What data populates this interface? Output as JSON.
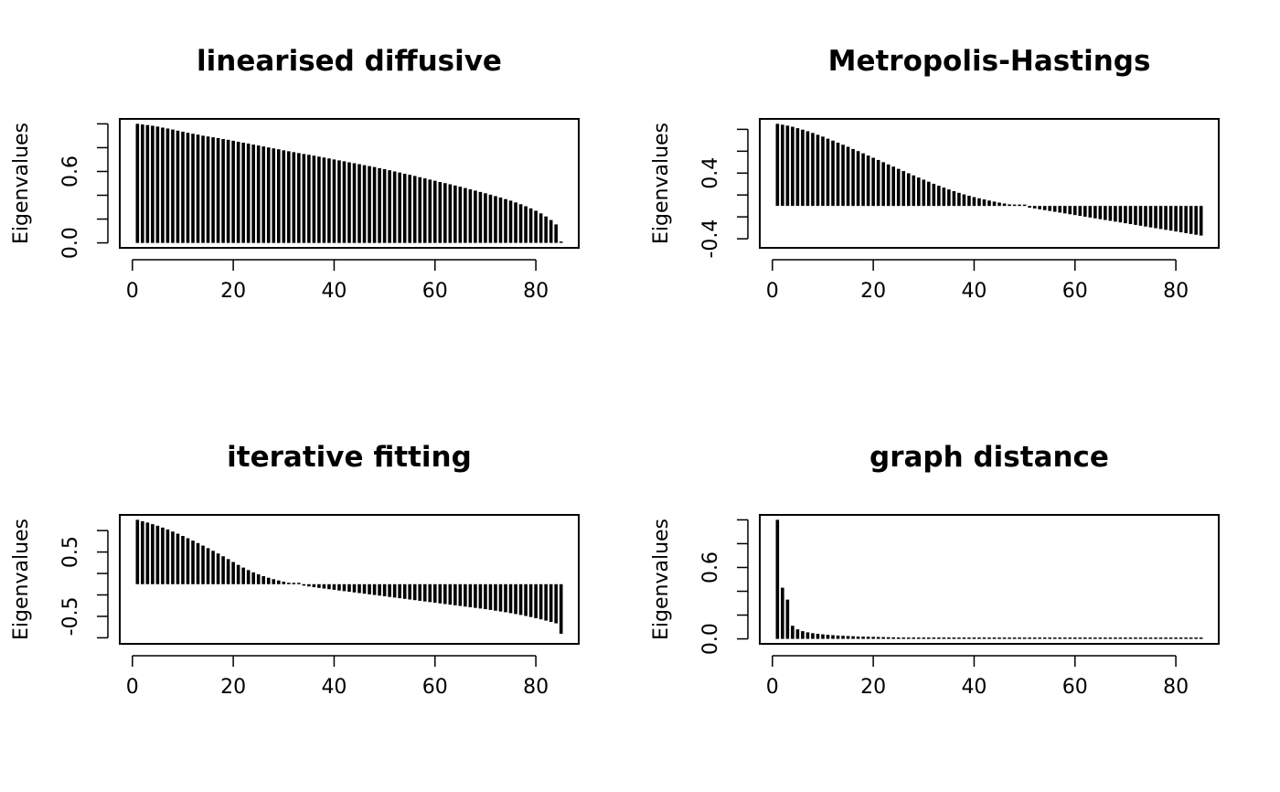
{
  "chart_data": [
    {
      "type": "bar",
      "title": "linearised diffusive",
      "ylabel": "Eigenvalues",
      "x": {
        "from": 1,
        "to": 85
      },
      "xlim": [
        1,
        85
      ],
      "xticks": [
        "0",
        "20",
        "40",
        "60",
        "80"
      ],
      "ylim": [
        0,
        1
      ],
      "yticks": [
        "0.0",
        "0.6"
      ],
      "grid": false,
      "values": [
        1.0,
        0.995,
        0.99,
        0.984,
        0.977,
        0.969,
        0.961,
        0.952,
        0.943,
        0.934,
        0.925,
        0.917,
        0.909,
        0.901,
        0.894,
        0.887,
        0.88,
        0.873,
        0.866,
        0.858,
        0.85,
        0.842,
        0.834,
        0.826,
        0.818,
        0.81,
        0.802,
        0.794,
        0.786,
        0.778,
        0.77,
        0.762,
        0.755,
        0.747,
        0.74,
        0.732,
        0.725,
        0.717,
        0.709,
        0.701,
        0.693,
        0.685,
        0.677,
        0.669,
        0.661,
        0.653,
        0.645,
        0.637,
        0.628,
        0.619,
        0.61,
        0.6,
        0.591,
        0.581,
        0.572,
        0.562,
        0.552,
        0.542,
        0.532,
        0.522,
        0.512,
        0.502,
        0.492,
        0.482,
        0.472,
        0.461,
        0.45,
        0.439,
        0.428,
        0.417,
        0.405,
        0.393,
        0.381,
        0.368,
        0.355,
        0.34,
        0.325,
        0.308,
        0.29,
        0.27,
        0.248,
        0.222,
        0.192,
        0.155,
        0.0
      ]
    },
    {
      "type": "bar",
      "title": "Metropolis-Hastings",
      "ylabel": "Eigenvalues",
      "x": {
        "from": 1,
        "to": 85
      },
      "xlim": [
        1,
        85
      ],
      "xticks": [
        "0",
        "20",
        "40",
        "60",
        "80"
      ],
      "ylim": [
        -0.45,
        1
      ],
      "yticks": [
        "-0.4",
        "0.4"
      ],
      "grid": false,
      "values": [
        1.0,
        0.99,
        0.978,
        0.964,
        0.948,
        0.93,
        0.91,
        0.889,
        0.867,
        0.844,
        0.82,
        0.796,
        0.771,
        0.746,
        0.72,
        0.694,
        0.668,
        0.641,
        0.614,
        0.587,
        0.56,
        0.533,
        0.506,
        0.479,
        0.452,
        0.425,
        0.398,
        0.372,
        0.346,
        0.32,
        0.295,
        0.27,
        0.246,
        0.223,
        0.201,
        0.18,
        0.16,
        0.141,
        0.124,
        0.108,
        0.093,
        0.079,
        0.066,
        0.053,
        0.041,
        0.03,
        0.019,
        0.009,
        -0.001,
        -0.011,
        -0.021,
        -0.031,
        -0.041,
        -0.051,
        -0.061,
        -0.071,
        -0.081,
        -0.091,
        -0.101,
        -0.111,
        -0.121,
        -0.131,
        -0.141,
        -0.151,
        -0.161,
        -0.171,
        -0.181,
        -0.191,
        -0.201,
        -0.211,
        -0.221,
        -0.231,
        -0.241,
        -0.251,
        -0.261,
        -0.271,
        -0.281,
        -0.291,
        -0.301,
        -0.311,
        -0.321,
        -0.331,
        -0.341,
        -0.351,
        -0.361
      ]
    },
    {
      "type": "bar",
      "title": "iterative fitting",
      "ylabel": "Eigenvalues",
      "x": {
        "from": 1,
        "to": 85
      },
      "xlim": [
        1,
        85
      ],
      "xticks": [
        "0",
        "20",
        "40",
        "60",
        "80"
      ],
      "ylim": [
        -0.85,
        1
      ],
      "yticks": [
        "-0.5",
        "0.5"
      ],
      "grid": false,
      "values": [
        1.0,
        0.98,
        0.958,
        0.934,
        0.908,
        0.88,
        0.85,
        0.818,
        0.785,
        0.75,
        0.714,
        0.677,
        0.639,
        0.6,
        0.56,
        0.519,
        0.477,
        0.434,
        0.39,
        0.345,
        0.3,
        0.258,
        0.219,
        0.184,
        0.153,
        0.125,
        0.1,
        0.078,
        0.058,
        0.04,
        0.023,
        0.007,
        -0.008,
        -0.022,
        -0.035,
        -0.047,
        -0.058,
        -0.068,
        -0.078,
        -0.088,
        -0.098,
        -0.108,
        -0.118,
        -0.128,
        -0.138,
        -0.148,
        -0.158,
        -0.168,
        -0.178,
        -0.188,
        -0.198,
        -0.208,
        -0.218,
        -0.228,
        -0.238,
        -0.248,
        -0.258,
        -0.268,
        -0.278,
        -0.288,
        -0.298,
        -0.308,
        -0.318,
        -0.328,
        -0.338,
        -0.348,
        -0.358,
        -0.368,
        -0.378,
        -0.388,
        -0.4,
        -0.412,
        -0.424,
        -0.436,
        -0.45,
        -0.464,
        -0.478,
        -0.494,
        -0.51,
        -0.528,
        -0.546,
        -0.566,
        -0.586,
        -0.608,
        -0.77
      ]
    },
    {
      "type": "bar",
      "title": "graph distance",
      "ylabel": "Eigenvalues",
      "x": {
        "from": 1,
        "to": 85
      },
      "xlim": [
        1,
        85
      ],
      "xticks": [
        "0",
        "20",
        "40",
        "60",
        "80"
      ],
      "ylim": [
        0,
        1
      ],
      "yticks": [
        "0.0",
        "0.6"
      ],
      "grid": false,
      "values": [
        1.0,
        0.43,
        0.33,
        0.11,
        0.08,
        0.065,
        0.055,
        0.048,
        0.042,
        0.038,
        0.034,
        0.031,
        0.028,
        0.026,
        0.024,
        0.022,
        0.02,
        0.019,
        0.018,
        0.017,
        0.016,
        0.015,
        0.014,
        0.013,
        0.012,
        0.011,
        0.01,
        0.009,
        0.009,
        0.008,
        0.008,
        0.007,
        0.007,
        0.006,
        0.006,
        0.005,
        0.005,
        0.005,
        0.004,
        0.004,
        0.004,
        0.003,
        0.003,
        0.003,
        0.003,
        0.002,
        0.002,
        0.002,
        0.002,
        0,
        0,
        0,
        0,
        0,
        0,
        0,
        0,
        0,
        0,
        0,
        0,
        0,
        0,
        0,
        0,
        0,
        0,
        0,
        0,
        0,
        0,
        0,
        0,
        0,
        0,
        0,
        0,
        0.002,
        0.002,
        0.002,
        0.002,
        0.002,
        0.002,
        0.002,
        0.002
      ]
    }
  ]
}
